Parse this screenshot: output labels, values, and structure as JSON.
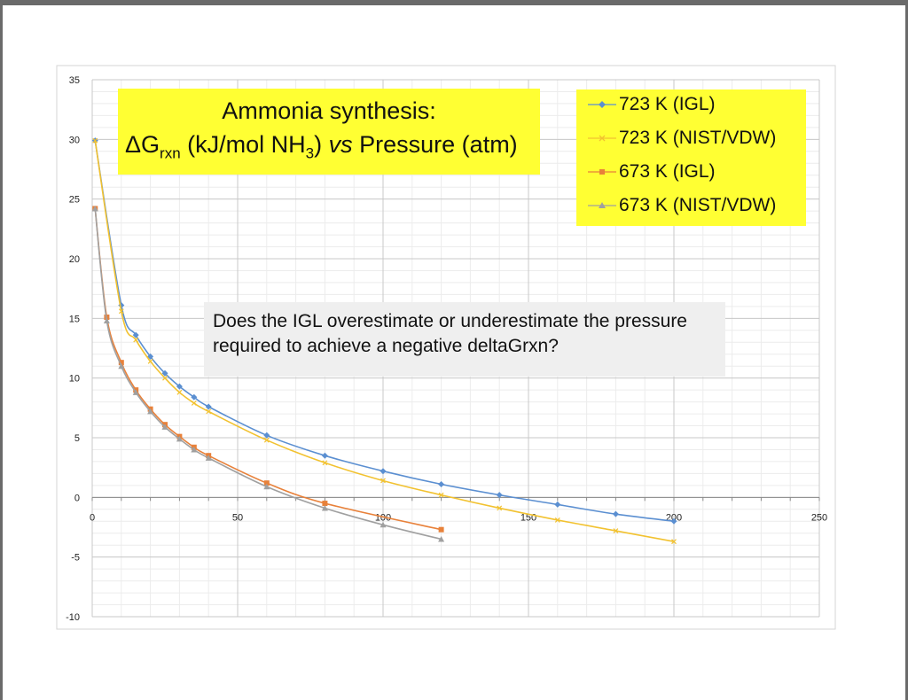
{
  "chart_data": {
    "type": "line",
    "title_line1": "Ammonia synthesis:",
    "title_line2": {
      "delta": "ΔG",
      "sub": "rxn",
      "mid": " (kJ/mol NH",
      "sub3": "3",
      "end1": ") ",
      "vs": "vs",
      "end2": " Pressure (atm)"
    },
    "annotation": "Does the IGL overestimate or underestimate the pressure required to achieve a negative deltaGrxn?",
    "xlim": [
      0,
      250
    ],
    "ylim": [
      -10,
      35
    ],
    "x_ticks": [
      0,
      50,
      100,
      150,
      200,
      250
    ],
    "y_ticks": [
      35,
      30,
      25,
      20,
      15,
      10,
      5,
      0,
      -5,
      -10
    ],
    "grid": true,
    "legend_position": "top-right",
    "series": [
      {
        "name": "723 K (IGL)",
        "color": "#5b8fd1",
        "marker": "diamond",
        "x": [
          1,
          10,
          15,
          20,
          25,
          30,
          35,
          40,
          60,
          80,
          100,
          120,
          140,
          160,
          180,
          200
        ],
        "y": [
          29.9,
          16.1,
          13.6,
          11.8,
          10.4,
          9.3,
          8.4,
          7.6,
          5.2,
          3.5,
          2.2,
          1.1,
          0.2,
          -0.6,
          -1.4,
          -2.0
        ]
      },
      {
        "name": "723 K (NIST/VDW)",
        "color": "#f2c230",
        "marker": "x",
        "x": [
          1,
          10,
          15,
          20,
          25,
          30,
          35,
          40,
          60,
          80,
          100,
          120,
          140,
          160,
          180,
          200
        ],
        "y": [
          29.9,
          15.6,
          13.2,
          11.4,
          10.0,
          8.8,
          7.9,
          7.2,
          4.8,
          2.9,
          1.4,
          0.2,
          -0.9,
          -1.9,
          -2.8,
          -3.7
        ]
      },
      {
        "name": "673 K (IGL)",
        "color": "#e8813a",
        "marker": "square",
        "x": [
          1,
          5,
          10,
          15,
          20,
          25,
          30,
          35,
          40,
          60,
          80,
          120
        ],
        "y": [
          24.2,
          15.1,
          11.3,
          9.0,
          7.4,
          6.1,
          5.1,
          4.2,
          3.5,
          1.2,
          -0.5,
          -2.7
        ]
      },
      {
        "name": "673 K (NIST/VDW)",
        "color": "#a0a0a0",
        "marker": "triangle",
        "x": [
          1,
          5,
          10,
          15,
          20,
          25,
          30,
          35,
          40,
          60,
          80,
          100,
          120
        ],
        "y": [
          24.2,
          14.8,
          11.0,
          8.8,
          7.2,
          5.9,
          4.9,
          4.0,
          3.3,
          0.9,
          -0.9,
          -2.3,
          -3.5
        ]
      }
    ]
  }
}
